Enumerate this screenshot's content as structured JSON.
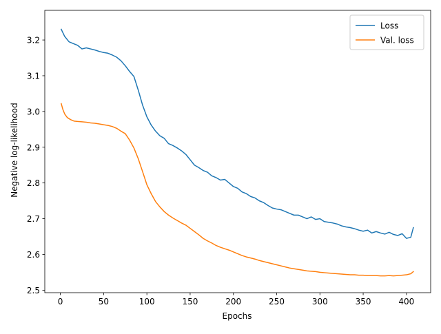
{
  "chart_data": {
    "type": "line",
    "title": "",
    "xlabel": "Epochs",
    "ylabel": "Negative log-likelihood",
    "xlim": [
      -18,
      428
    ],
    "ylim": [
      2.493,
      3.283
    ],
    "xticks": [
      0,
      50,
      100,
      150,
      200,
      250,
      300,
      350,
      400
    ],
    "xtick_labels": [
      "0",
      "50",
      "100",
      "150",
      "200",
      "250",
      "300",
      "350",
      "400"
    ],
    "yticks": [
      2.5,
      2.6,
      2.7,
      2.8,
      2.9,
      3.0,
      3.1,
      3.2
    ],
    "ytick_labels": [
      "2.5",
      "2.6",
      "2.7",
      "2.8",
      "2.9",
      "3.0",
      "3.1",
      "3.2"
    ],
    "grid": false,
    "legend_position": "top-right",
    "series": [
      {
        "name": "Loss",
        "color": "#1f77b4",
        "x": [
          1,
          5,
          10,
          15,
          20,
          25,
          30,
          35,
          40,
          45,
          50,
          55,
          60,
          65,
          70,
          75,
          80,
          85,
          90,
          95,
          100,
          105,
          110,
          115,
          120,
          125,
          130,
          135,
          140,
          145,
          150,
          155,
          160,
          165,
          170,
          175,
          180,
          185,
          190,
          195,
          200,
          205,
          210,
          215,
          220,
          225,
          230,
          235,
          240,
          245,
          250,
          255,
          260,
          265,
          270,
          275,
          280,
          285,
          290,
          295,
          300,
          305,
          310,
          315,
          320,
          325,
          330,
          335,
          340,
          345,
          350,
          355,
          360,
          365,
          370,
          375,
          380,
          385,
          390,
          395,
          400,
          405,
          408
        ],
        "y": [
          3.23,
          3.21,
          3.195,
          3.19,
          3.185,
          3.175,
          3.178,
          3.175,
          3.172,
          3.168,
          3.165,
          3.163,
          3.158,
          3.152,
          3.142,
          3.128,
          3.112,
          3.098,
          3.06,
          3.018,
          2.985,
          2.962,
          2.945,
          2.932,
          2.925,
          2.91,
          2.905,
          2.898,
          2.89,
          2.88,
          2.865,
          2.85,
          2.843,
          2.835,
          2.83,
          2.82,
          2.815,
          2.808,
          2.81,
          2.8,
          2.79,
          2.785,
          2.775,
          2.77,
          2.762,
          2.758,
          2.75,
          2.745,
          2.737,
          2.73,
          2.727,
          2.725,
          2.72,
          2.715,
          2.71,
          2.71,
          2.705,
          2.7,
          2.705,
          2.698,
          2.7,
          2.692,
          2.69,
          2.688,
          2.685,
          2.68,
          2.677,
          2.675,
          2.672,
          2.668,
          2.665,
          2.668,
          2.66,
          2.664,
          2.66,
          2.657,
          2.662,
          2.656,
          2.653,
          2.658,
          2.645,
          2.648,
          2.675
        ]
      },
      {
        "name": "Val. loss",
        "color": "#ff7f0e",
        "x": [
          1,
          3,
          5,
          8,
          12,
          16,
          20,
          25,
          30,
          35,
          40,
          45,
          50,
          55,
          60,
          65,
          70,
          75,
          80,
          85,
          90,
          95,
          100,
          105,
          110,
          115,
          120,
          125,
          130,
          135,
          140,
          145,
          150,
          155,
          160,
          165,
          170,
          175,
          180,
          185,
          190,
          195,
          200,
          205,
          210,
          215,
          220,
          225,
          230,
          235,
          240,
          245,
          250,
          255,
          260,
          265,
          270,
          275,
          280,
          285,
          290,
          295,
          300,
          305,
          310,
          315,
          320,
          325,
          330,
          335,
          340,
          345,
          350,
          355,
          360,
          365,
          370,
          375,
          380,
          385,
          390,
          395,
          400,
          405,
          408
        ],
        "y": [
          3.022,
          3.005,
          2.993,
          2.983,
          2.977,
          2.973,
          2.972,
          2.971,
          2.97,
          2.968,
          2.967,
          2.965,
          2.963,
          2.961,
          2.958,
          2.953,
          2.945,
          2.938,
          2.92,
          2.898,
          2.868,
          2.832,
          2.795,
          2.77,
          2.748,
          2.733,
          2.72,
          2.71,
          2.702,
          2.695,
          2.688,
          2.682,
          2.673,
          2.664,
          2.655,
          2.645,
          2.638,
          2.632,
          2.625,
          2.62,
          2.616,
          2.612,
          2.607,
          2.602,
          2.597,
          2.593,
          2.59,
          2.587,
          2.583,
          2.58,
          2.577,
          2.574,
          2.571,
          2.568,
          2.565,
          2.562,
          2.56,
          2.558,
          2.556,
          2.554,
          2.553,
          2.552,
          2.55,
          2.549,
          2.548,
          2.547,
          2.546,
          2.545,
          2.544,
          2.543,
          2.543,
          2.542,
          2.542,
          2.541,
          2.541,
          2.541,
          2.54,
          2.54,
          2.541,
          2.54,
          2.541,
          2.542,
          2.543,
          2.546,
          2.552
        ]
      }
    ]
  }
}
